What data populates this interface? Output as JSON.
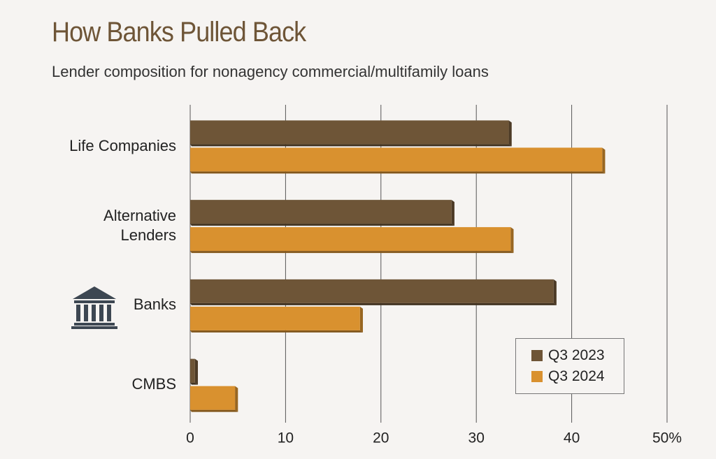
{
  "chart_data": {
    "type": "bar",
    "orientation": "horizontal",
    "title": "How Banks Pulled Back",
    "subtitle": "Lender composition for nonagency commercial/multifamily loans",
    "categories": [
      "Life Companies",
      "Alternative Lenders",
      "Banks",
      "CMBS"
    ],
    "series": [
      {
        "name": "Q3 2023",
        "color": "#6e5537",
        "values": [
          33.4,
          27.4,
          38.1,
          0.5
        ]
      },
      {
        "name": "Q3 2024",
        "color": "#d9912f",
        "values": [
          43.2,
          33.6,
          17.8,
          4.7
        ]
      }
    ],
    "xlim": [
      0,
      50
    ],
    "xticks": [
      0,
      10,
      20,
      30,
      40,
      {
        "value": 50,
        "label": "50%"
      }
    ],
    "grid": true,
    "legend": "lower right"
  }
}
